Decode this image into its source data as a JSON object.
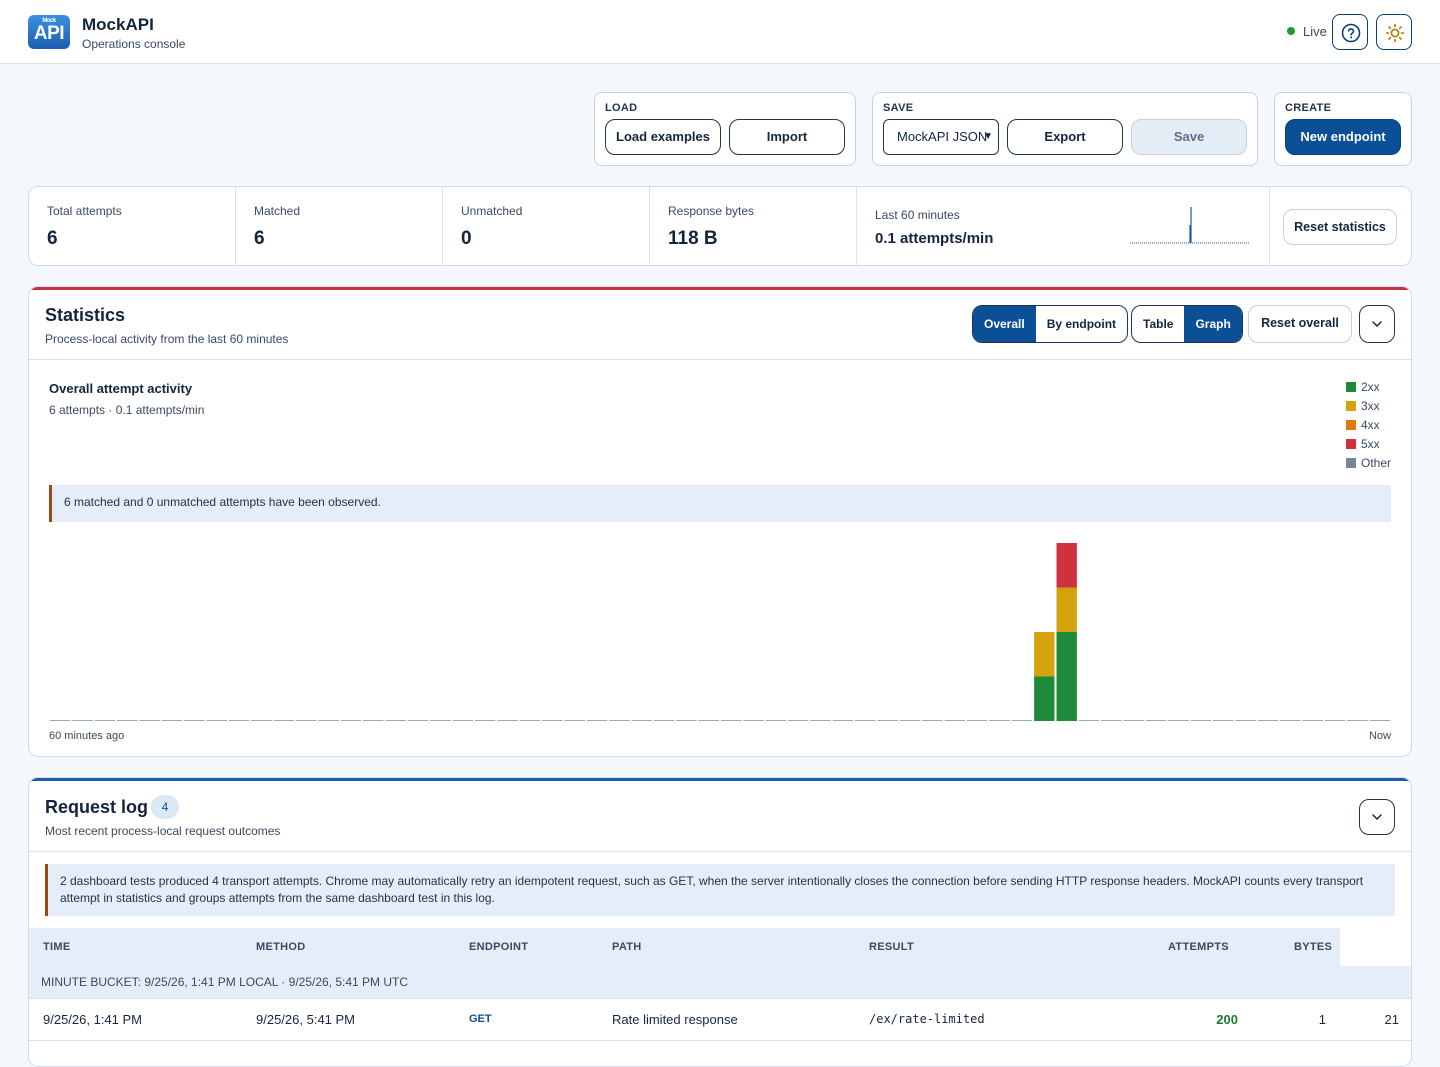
{
  "app": {
    "title": "MockAPI",
    "subtitle": "Operations console",
    "logo_small": "Mock",
    "logo_big": "API",
    "live_label": "Live",
    "live_color": "#1e9c3a"
  },
  "toolbar": {
    "load": {
      "label": "LOAD",
      "load_examples": "Load examples",
      "import": "Import"
    },
    "save": {
      "label": "SAVE",
      "format_selected": "MockAPI JSON",
      "export": "Export",
      "save": "Save"
    },
    "create": {
      "label": "CREATE",
      "new_endpoint": "New endpoint"
    }
  },
  "summary": {
    "total_label": "Total attempts",
    "total_value": "6",
    "matched_label": "Matched",
    "matched_value": "6",
    "unmatched_label": "Unmatched",
    "unmatched_value": "0",
    "bytes_label": "Response bytes",
    "bytes_value": "118 B",
    "rate_label": "Last 60 minutes",
    "rate_value": "0.1 attempts/min",
    "reset_button": "Reset statistics"
  },
  "sparkline": {
    "minutes": 60,
    "values": [
      0,
      0,
      0,
      0,
      0,
      0,
      0,
      0,
      0,
      0,
      0,
      0,
      0,
      0,
      0,
      0,
      0,
      0,
      0,
      0,
      0,
      0,
      0,
      0,
      0,
      0,
      0,
      0,
      0,
      0,
      0,
      0,
      0,
      0,
      0,
      0,
      0,
      0,
      0,
      0,
      0,
      0,
      0,
      0,
      0,
      0,
      0,
      0,
      0,
      0,
      0,
      0,
      0,
      0,
      0,
      0,
      0,
      0,
      0,
      0,
      2,
      4,
      0,
      0,
      0,
      0,
      0,
      0,
      0,
      0,
      0,
      0,
      0,
      0,
      0,
      0,
      0,
      0,
      0,
      0,
      0,
      0,
      0,
      0,
      0,
      0,
      0,
      0,
      0,
      0,
      0,
      0,
      0,
      0,
      0,
      0,
      0,
      0,
      0,
      0,
      0,
      0,
      0,
      0,
      0,
      0,
      0,
      0,
      0,
      0,
      0,
      0,
      0,
      0,
      0,
      0,
      0,
      0,
      0,
      0
    ]
  },
  "statistics": {
    "title": "Statistics",
    "subtitle": "Process-local activity from the last 60 minutes",
    "view_tabs": [
      "Overall",
      "By endpoint"
    ],
    "mode_tabs": [
      "Table",
      "Graph"
    ],
    "reset_button": "Reset overall",
    "chart_title": "Overall attempt activity",
    "chart_subtitle": "6 attempts · 0.1 attempts/min",
    "notice": "6 matched and 0 unmatched attempts have been observed.",
    "x_start_label": "60 minutes ago",
    "x_end_label": "Now"
  },
  "chart_data": {
    "type": "bar",
    "stacked": true,
    "bins": 60,
    "x_start": "60 minutes ago",
    "x_end": "Now",
    "legend": [
      {
        "name": "2xx",
        "color": "#1e8a3a"
      },
      {
        "name": "3xx",
        "color": "#d4a20a"
      },
      {
        "name": "4xx",
        "color": "#e07a10"
      },
      {
        "name": "5xx",
        "color": "#d0313f"
      },
      {
        "name": "Other",
        "color": "#7a8696"
      }
    ],
    "bars": [
      {
        "bin": 44,
        "2xx": 1,
        "3xx": 1,
        "4xx": 0,
        "5xx": 0,
        "Other": 0
      },
      {
        "bin": 45,
        "2xx": 2,
        "3xx": 1,
        "4xx": 0,
        "5xx": 1,
        "Other": 0
      }
    ],
    "ylim": [
      0,
      4
    ]
  },
  "request_log": {
    "title": "Request log",
    "count": "4",
    "subtitle": "Most recent process-local request outcomes",
    "notice": "2 dashboard tests produced 4 transport attempts. Chrome may automatically retry an idempotent request, such as GET, when the server intentionally closes the connection before sending HTTP response headers. MockAPI counts every transport attempt in statistics and groups attempts from the same dashboard test in this log.",
    "columns": [
      "TIME",
      "METHOD",
      "ENDPOINT",
      "PATH",
      "RESULT",
      "ATTEMPTS",
      "BYTES"
    ],
    "bucket": "MINUTE BUCKET: 9/25/26, 1:41 PM LOCAL · 9/25/26, 5:41 PM UTC",
    "rows": [
      {
        "time": "9/25/26, 1:41 PM",
        "method": "9/25/26, 5:41 PM",
        "endpoint": "GET",
        "path": "Rate limited response",
        "result": "/ex/rate-limited",
        "attempts": "200",
        "bytes": "1",
        "extra": "21"
      }
    ]
  }
}
